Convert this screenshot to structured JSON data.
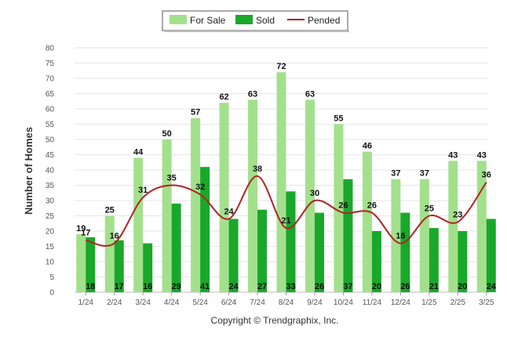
{
  "chart_data": {
    "type": "bar",
    "categories": [
      "1/24",
      "2/24",
      "3/24",
      "4/24",
      "5/24",
      "6/24",
      "7/24",
      "8/24",
      "9/24",
      "10/24",
      "11/24",
      "12/24",
      "1/25",
      "2/25",
      "3/25"
    ],
    "series": [
      {
        "name": "For Sale",
        "kind": "bar",
        "color": "#a3e08c",
        "values": [
          19,
          25,
          44,
          50,
          57,
          62,
          63,
          72,
          63,
          55,
          46,
          37,
          37,
          43,
          43
        ]
      },
      {
        "name": "Sold",
        "kind": "bar",
        "color": "#19a82a",
        "values": [
          18,
          17,
          16,
          29,
          41,
          24,
          27,
          33,
          26,
          37,
          20,
          26,
          21,
          20,
          24
        ]
      },
      {
        "name": "Pended",
        "kind": "line",
        "color": "#b22222",
        "values": [
          17,
          16,
          31,
          35,
          32,
          24,
          38,
          21,
          30,
          26,
          26,
          16,
          25,
          23,
          36
        ]
      }
    ],
    "ylabel": "Number of Homes",
    "xlabel": "",
    "ylim": [
      0,
      80
    ],
    "yticks": [
      0,
      5,
      10,
      15,
      20,
      25,
      30,
      35,
      40,
      45,
      50,
      55,
      60,
      65,
      70,
      75,
      80
    ],
    "grid": true,
    "legend_position": "top-center"
  },
  "footer": {
    "copyright": "Copyright © Trendgraphix, Inc."
  }
}
